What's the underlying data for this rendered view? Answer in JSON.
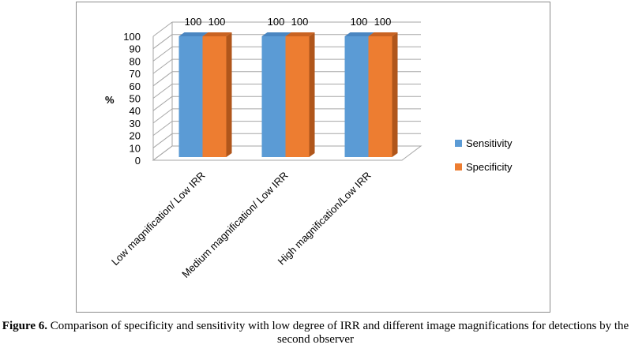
{
  "caption": {
    "label": "Figure 6.",
    "text": " Comparison of specificity and sensitivity with low degree of IRR and different image magnifications for detections by the second observer"
  },
  "chart_data": {
    "type": "bar",
    "style": "3d-clustered-column",
    "categories": [
      "Low magnification/ Low IRR",
      "Medium magnification/ Low IRR",
      "High magnification/Low IRR"
    ],
    "series": [
      {
        "name": "Sensitivity",
        "values": [
          100,
          100,
          100
        ],
        "color": "#5b9bd5",
        "side_color": "#3c7ab5",
        "top_color": "#4a86c1"
      },
      {
        "name": "Specificity",
        "values": [
          100,
          100,
          100
        ],
        "color": "#ed7d31",
        "side_color": "#b0561b",
        "top_color": "#c96322"
      }
    ],
    "data_labels": [
      "100",
      "100",
      "100",
      "100",
      "100",
      "100"
    ],
    "ylabel": "%",
    "xlabel": "",
    "ylim": [
      0,
      100
    ],
    "yticks": [
      0,
      10,
      20,
      30,
      40,
      50,
      60,
      70,
      80,
      90,
      100
    ],
    "grid": true,
    "legend_position": "right"
  }
}
